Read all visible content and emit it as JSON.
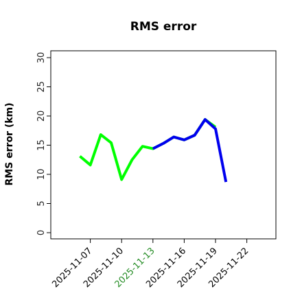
{
  "chart_data": {
    "type": "line",
    "title": "RMS error",
    "xlabel": "",
    "ylabel": "RMS error (km)",
    "ylim": [
      0,
      31
    ],
    "yticks": [
      0,
      5,
      10,
      15,
      20,
      25,
      30
    ],
    "xlim": [
      "2025-11-04",
      "2025-11-24"
    ],
    "xticks": [
      {
        "date": "2025-11-07",
        "label": "2025-11-07",
        "color": "#000000"
      },
      {
        "date": "2025-11-10",
        "label": "2025-11-10",
        "color": "#000000"
      },
      {
        "date": "2025-11-13",
        "label": "2025-11-13",
        "color": "#228b22"
      },
      {
        "date": "2025-11-16",
        "label": "2025-11-16",
        "color": "#000000"
      },
      {
        "date": "2025-11-19",
        "label": "2025-11-19",
        "color": "#000000"
      },
      {
        "date": "2025-11-22",
        "label": "2025-11-22",
        "color": "#000000"
      }
    ],
    "grid": false,
    "series": [
      {
        "color": "#00ff00",
        "x": [
          "2025-11-06",
          "2025-11-07",
          "2025-11-08",
          "2025-11-09",
          "2025-11-10",
          "2025-11-11",
          "2025-11-12",
          "2025-11-13",
          "2025-11-14",
          "2025-11-15",
          "2025-11-16",
          "2025-11-17",
          "2025-11-18",
          "2025-11-19"
        ],
        "y": [
          13.1,
          11.6,
          16.8,
          15.4,
          9.1,
          12.5,
          14.8,
          14.4,
          15.3,
          16.4,
          15.9,
          16.7,
          19.4,
          18.1
        ]
      },
      {
        "color": "#0000ee",
        "x": [
          "2025-11-13",
          "2025-11-14",
          "2025-11-15",
          "2025-11-16",
          "2025-11-17",
          "2025-11-18",
          "2025-11-19",
          "2025-11-20"
        ],
        "y": [
          14.4,
          15.3,
          16.4,
          15.9,
          16.7,
          19.4,
          17.8,
          8.7
        ]
      }
    ]
  }
}
